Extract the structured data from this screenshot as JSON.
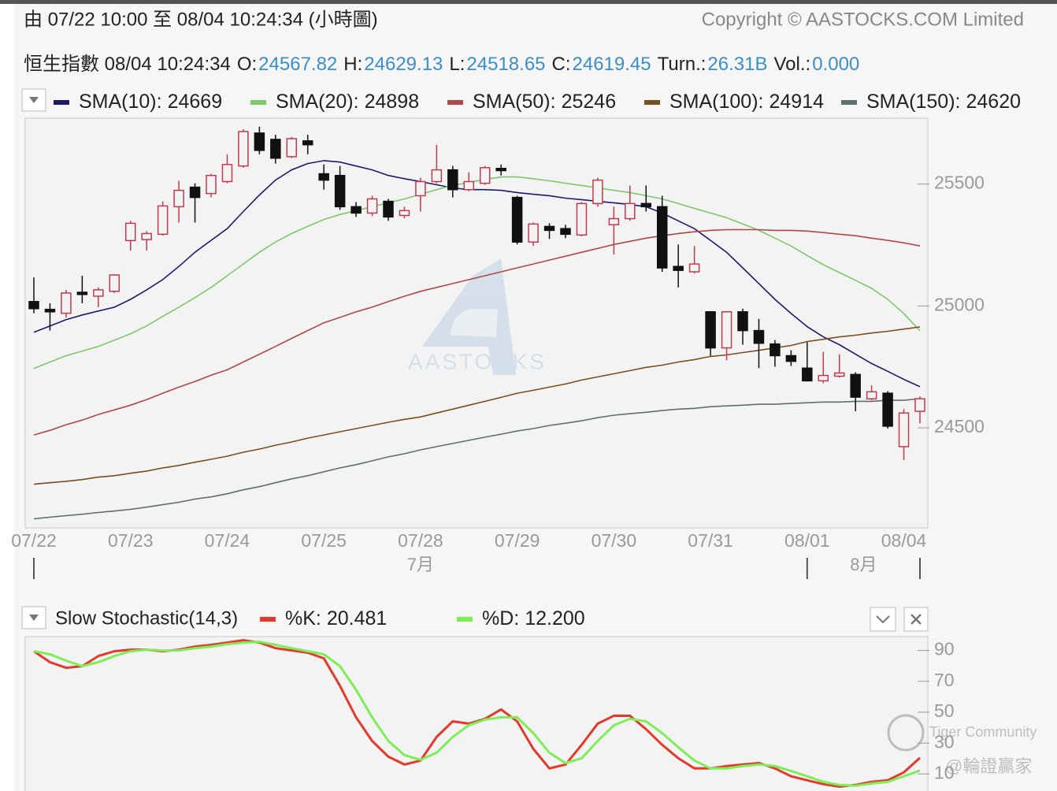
{
  "header": {
    "range": "由  07/22 10:00 至  08/04 10:24:34 (小時圖)",
    "copyright": "Copyright © AASTOCKS.COM Limited",
    "quote_title": "恒生指數 08/04 10:24:34",
    "quote": [
      {
        "label": "O:",
        "value": 24567.82
      },
      {
        "label": "H:",
        "value": 24629.13
      },
      {
        "label": "L:",
        "value": 24518.65
      },
      {
        "label": "C:",
        "value": 24619.45
      },
      {
        "label": "Turn.:",
        "value": "26.31B"
      },
      {
        "label": "Vol.:",
        "value": "0.000"
      }
    ]
  },
  "watermarks": [
    "AASTOCKS",
    "Tiger Community",
    "@輪證贏家"
  ],
  "chart_data": [
    {
      "type": "candlestick",
      "up_color": "#c23a4e",
      "down_color": "#111111",
      "grid": false,
      "categories": [
        "07/22",
        null,
        null,
        null,
        null,
        null,
        "07/23",
        null,
        null,
        null,
        null,
        null,
        "07/24",
        null,
        null,
        null,
        null,
        null,
        "07/25",
        null,
        null,
        null,
        null,
        null,
        "07/28",
        null,
        null,
        null,
        null,
        null,
        "07/29",
        null,
        null,
        null,
        null,
        null,
        "07/30",
        null,
        null,
        null,
        null,
        null,
        "07/31",
        null,
        null,
        null,
        null,
        null,
        "08/01",
        null,
        null,
        null,
        null,
        null,
        "08/04",
        null
      ],
      "month_labels": [
        "7月",
        "8月"
      ],
      "open": [
        25018,
        24986,
        24970,
        25056,
        25040,
        25060,
        25268,
        25272,
        25294,
        25407,
        25487,
        25461,
        25510,
        25574,
        25709,
        25683,
        25612,
        25677,
        25542,
        25535,
        25407,
        25381,
        25429,
        25371,
        25452,
        25510,
        25558,
        25477,
        25503,
        25564,
        25445,
        25262,
        25326,
        25317,
        25291,
        25420,
        25333,
        25358,
        25420,
        25407,
        25162,
        25140,
        24976,
        24828,
        24976,
        24899,
        24844,
        24796,
        24745,
        24693,
        24712,
        24719,
        24619,
        24642,
        24423,
        24567.82
      ],
      "high": [
        25117,
        25011,
        25066,
        25124,
        25076,
        25130,
        25349,
        25307,
        25429,
        25513,
        25503,
        25542,
        25622,
        25725,
        25735,
        25702,
        25693,
        25702,
        25580,
        25574,
        25426,
        25452,
        25439,
        25407,
        25526,
        25661,
        25574,
        25548,
        25574,
        25580,
        25452,
        25342,
        25339,
        25333,
        25426,
        25526,
        25407,
        25494,
        25494,
        25452,
        25252,
        25246,
        24979,
        24979,
        24989,
        24947,
        24860,
        24818,
        24851,
        24812,
        24802,
        24728,
        24674,
        24651,
        24577,
        24629.13
      ],
      "low": [
        24970,
        24899,
        24953,
        25011,
        24995,
        25053,
        25227,
        25227,
        25288,
        25342,
        25342,
        25445,
        25503,
        25567,
        25622,
        25584,
        25606,
        25622,
        25477,
        25394,
        25365,
        25368,
        25349,
        25359,
        25387,
        25503,
        25445,
        25471,
        25497,
        25535,
        25252,
        25246,
        25275,
        25278,
        25285,
        25407,
        25211,
        25349,
        25387,
        25140,
        25076,
        25133,
        24796,
        24777,
        24841,
        24745,
        24751,
        24754,
        24690,
        24683,
        24706,
        24568,
        24613,
        24497,
        24368,
        24518.65
      ],
      "close": [
        24989,
        24976,
        25053,
        25047,
        25066,
        25127,
        25339,
        25297,
        25410,
        25474,
        25445,
        25535,
        25580,
        25715,
        25638,
        25606,
        25686,
        25661,
        25516,
        25407,
        25381,
        25439,
        25365,
        25391,
        25510,
        25558,
        25477,
        25510,
        25567,
        25555,
        25262,
        25336,
        25310,
        25294,
        25420,
        25516,
        25358,
        25420,
        25407,
        25156,
        25146,
        25172,
        24828,
        24976,
        24899,
        24847,
        24796,
        24773,
        24693,
        24715,
        24725,
        24626,
        24648,
        24507,
        24561,
        24619.45
      ],
      "series": [
        {
          "name": "SMA(10):",
          "last": 24669,
          "color": "#1c1a6c",
          "values": [
            24892,
            24918,
            24944,
            24963,
            24979,
            24995,
            25027,
            25066,
            25108,
            25162,
            25220,
            25269,
            25317,
            25387,
            25455,
            25516,
            25558,
            25584,
            25596,
            25590,
            25574,
            25558,
            25535,
            25522,
            25510,
            25497,
            25484,
            25477,
            25477,
            25474,
            25465,
            25458,
            25452,
            25442,
            25436,
            25429,
            25423,
            25416,
            25407,
            25381,
            25349,
            25317,
            25269,
            25220,
            25156,
            25092,
            25027,
            24969,
            24915,
            24873,
            24841,
            24802,
            24764,
            24732,
            24699,
            24669
          ]
        },
        {
          "name": "SMA(20):",
          "last": 24898,
          "color": "#7cc96a",
          "values": [
            24744,
            24770,
            24796,
            24815,
            24834,
            24860,
            24886,
            24918,
            24957,
            24995,
            25034,
            25076,
            25124,
            25172,
            25220,
            25262,
            25297,
            25326,
            25355,
            25375,
            25391,
            25407,
            25423,
            25439,
            25458,
            25477,
            25494,
            25506,
            25519,
            25529,
            25529,
            25522,
            25513,
            25503,
            25494,
            25484,
            25474,
            25465,
            25452,
            25439,
            25420,
            25400,
            25381,
            25362,
            25336,
            25310,
            25278,
            25246,
            25207,
            25169,
            25137,
            25105,
            25072,
            25027,
            24969,
            24898
          ]
        },
        {
          "name": "SMA(50):",
          "last": 25246,
          "color": "#b04848",
          "values": [
            24471,
            24490,
            24513,
            24532,
            24555,
            24574,
            24593,
            24616,
            24642,
            24667,
            24690,
            24716,
            24738,
            24770,
            24802,
            24834,
            24867,
            24899,
            24931,
            24953,
            24976,
            24995,
            25018,
            25040,
            25060,
            25076,
            25092,
            25108,
            25124,
            25140,
            25156,
            25172,
            25188,
            25204,
            25220,
            25236,
            25252,
            25265,
            25278,
            25288,
            25297,
            25304,
            25310,
            25313,
            25313,
            25313,
            25310,
            25310,
            25307,
            25301,
            25294,
            25288,
            25278,
            25269,
            25259,
            25246
          ]
        },
        {
          "name": "SMA(100):",
          "last": 24914,
          "color": "#7a4f1c",
          "values": [
            24269,
            24275,
            24281,
            24288,
            24298,
            24304,
            24314,
            24323,
            24336,
            24346,
            24359,
            24371,
            24384,
            24400,
            24413,
            24429,
            24442,
            24458,
            24471,
            24484,
            24497,
            24510,
            24523,
            24535,
            24545,
            24561,
            24577,
            24593,
            24609,
            24625,
            24642,
            24654,
            24667,
            24680,
            24696,
            24709,
            24722,
            24735,
            24748,
            24757,
            24770,
            24780,
            24793,
            24799,
            24809,
            24818,
            24828,
            24838,
            24854,
            24863,
            24873,
            24880,
            24889,
            24896,
            24905,
            24914
          ]
        },
        {
          "name": "SMA(150):",
          "last": 24620,
          "color": "#5f6f6f",
          "values": [
            24127,
            24134,
            24140,
            24146,
            24153,
            24159,
            24166,
            24175,
            24185,
            24195,
            24208,
            24217,
            24230,
            24246,
            24259,
            24275,
            24291,
            24304,
            24320,
            24336,
            24349,
            24365,
            24381,
            24394,
            24410,
            24423,
            24436,
            24449,
            24462,
            24474,
            24487,
            24497,
            24510,
            24519,
            24529,
            24542,
            24552,
            24558,
            24564,
            24571,
            24577,
            24580,
            24587,
            24590,
            24593,
            24597,
            24597,
            24600,
            24603,
            24606,
            24606,
            24609,
            24609,
            24613,
            24613,
            24620
          ]
        }
      ],
      "ylim": [
        24090,
        25770
      ],
      "yticks": [
        24500,
        25000,
        25500
      ]
    },
    {
      "type": "line",
      "title": "Slow Stochastic(14,3)",
      "grid": false,
      "series": [
        {
          "name": "%K:",
          "last": 20.481,
          "color": "#e2392a",
          "values": [
            89.5,
            82.4,
            78.8,
            79.8,
            86.4,
            89.5,
            90.5,
            90.5,
            89.5,
            90.5,
            92.5,
            93.6,
            95.1,
            96.6,
            95.1,
            91.5,
            90,
            88.5,
            84.9,
            67.1,
            46.7,
            31.4,
            21.2,
            16.1,
            18.7,
            34,
            44.1,
            42.6,
            45.7,
            51.8,
            44.1,
            26.3,
            13.6,
            16.1,
            28.9,
            42.6,
            47.7,
            47.7,
            39,
            28.9,
            20.2,
            13.6,
            13.6,
            15.1,
            16.1,
            17.1,
            13.6,
            8.5,
            5.9,
            3.4,
            1.8,
            2.9,
            4.9,
            5.9,
            11,
            20.481
          ]
        },
        {
          "name": "%D:",
          "last": 12.2,
          "last_label": "12.200",
          "color": "#7eee58",
          "values": [
            89.5,
            87.5,
            83.4,
            79.8,
            82.4,
            86.4,
            89.5,
            90.5,
            90,
            90,
            91.5,
            92.5,
            94.1,
            95.1,
            95.6,
            93.6,
            91.5,
            89.5,
            87.5,
            79.8,
            64.5,
            46.7,
            31.4,
            22.2,
            19.2,
            23.8,
            34,
            41.6,
            45.2,
            46.7,
            46.7,
            36.5,
            23.8,
            17.1,
            20.2,
            31.4,
            41.6,
            45.7,
            44.1,
            36.5,
            27.3,
            18.7,
            13.6,
            13.6,
            15.1,
            16.1,
            15.1,
            12,
            8.5,
            4.9,
            2.9,
            2.4,
            3.9,
            4.9,
            8.5,
            12.2
          ]
        }
      ],
      "ylim": [
        0,
        100
      ],
      "yticks": [
        90,
        70,
        50,
        30,
        10
      ]
    }
  ]
}
